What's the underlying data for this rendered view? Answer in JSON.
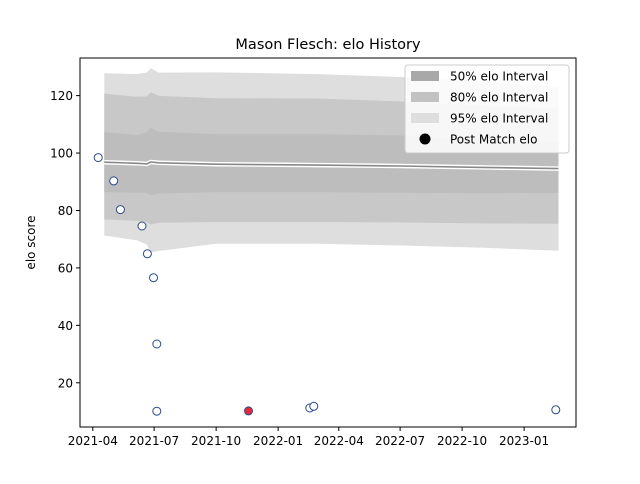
{
  "chart_data": {
    "type": "line",
    "title": "Mason Flesch: elo History",
    "xlabel": "",
    "ylabel": "elo score",
    "x_axis_kind": "date",
    "xlim": [
      "2021-03-13",
      "2023-03-19"
    ],
    "ylim": [
      4.6,
      133.1
    ],
    "x_ticks": [
      "2021-04",
      "2021-07",
      "2021-10",
      "2022-01",
      "2022-04",
      "2022-07",
      "2022-10",
      "2023-01"
    ],
    "y_ticks": [
      20,
      40,
      60,
      80,
      100,
      120
    ],
    "grid": false,
    "legend_position": "top-right",
    "legend": [
      {
        "label": "50% elo Interval",
        "kind": "band",
        "color": "#a8a8a8"
      },
      {
        "label": "80% elo Interval",
        "kind": "band",
        "color": "#c2c2c2"
      },
      {
        "label": "95% elo Interval",
        "kind": "band",
        "color": "#dedede"
      },
      {
        "label": "Post Match elo",
        "kind": "point",
        "color": "#000000"
      }
    ],
    "mean_line": {
      "x": [
        "2021-04-18",
        "2021-06-10",
        "2021-06-20",
        "2021-06-26",
        "2021-07-08",
        "2021-10-01",
        "2022-03-01",
        "2022-07-01",
        "2022-11-01",
        "2023-02-21"
      ],
      "y": [
        96.8,
        96.4,
        96.2,
        96.9,
        96.6,
        96.1,
        95.8,
        95.5,
        95.0,
        94.6
      ]
    },
    "bands": [
      {
        "name": "95% elo Interval",
        "color": "#dedede",
        "x": [
          "2021-04-18",
          "2021-06-05",
          "2021-06-20",
          "2021-06-26",
          "2021-07-08",
          "2021-10-01",
          "2022-03-01",
          "2022-07-01",
          "2022-11-01",
          "2023-02-21"
        ],
        "lower": [
          71.3,
          69.6,
          68.2,
          65.4,
          65.9,
          68.4,
          68.4,
          67.8,
          67.0,
          66.0
        ],
        "upper": [
          127.8,
          127.5,
          128.0,
          129.5,
          128.0,
          128.1,
          127.5,
          126.5,
          124.8,
          123.0
        ]
      },
      {
        "name": "80% elo Interval",
        "color": "#c8c8c8",
        "x": [
          "2021-04-18",
          "2021-06-05",
          "2021-06-20",
          "2021-06-26",
          "2021-07-08",
          "2021-10-01",
          "2022-03-01",
          "2022-07-01",
          "2022-11-01",
          "2023-02-21"
        ],
        "lower": [
          76.9,
          76.4,
          76.0,
          75.1,
          75.7,
          76.0,
          76.0,
          75.8,
          75.5,
          75.4
        ],
        "upper": [
          120.7,
          119.6,
          119.7,
          121.2,
          119.9,
          119.1,
          119.0,
          118.0,
          116.5,
          115.5
        ]
      },
      {
        "name": "50% elo Interval",
        "color": "#bdbdbd",
        "x": [
          "2021-04-18",
          "2021-06-05",
          "2021-06-20",
          "2021-06-26",
          "2021-07-08",
          "2021-10-01",
          "2022-03-01",
          "2022-07-01",
          "2022-11-01",
          "2023-02-21"
        ],
        "lower": [
          86.4,
          86.2,
          86.2,
          85.2,
          85.9,
          86.4,
          86.4,
          86.2,
          86.0,
          86.2
        ],
        "upper": [
          107.3,
          106.3,
          107.2,
          108.8,
          107.4,
          106.6,
          106.6,
          106.1,
          104.9,
          103.9
        ]
      }
    ],
    "points": [
      {
        "x": "2021-04-09",
        "y": 98.4,
        "color": "#ffffff"
      },
      {
        "x": "2021-05-02",
        "y": 90.3,
        "color": "#ffffff"
      },
      {
        "x": "2021-05-12",
        "y": 80.3,
        "color": "#ffffff"
      },
      {
        "x": "2021-06-13",
        "y": 74.6,
        "color": "#ffffff"
      },
      {
        "x": "2021-06-21",
        "y": 64.9,
        "color": "#ffffff"
      },
      {
        "x": "2021-06-30",
        "y": 56.6,
        "color": "#ffffff"
      },
      {
        "x": "2021-07-05",
        "y": 33.5,
        "color": "#ffffff"
      },
      {
        "x": "2021-07-05",
        "y": 10.1,
        "color": "#ffffff"
      },
      {
        "x": "2021-11-18",
        "y": 10.2,
        "color": "#e8293a"
      },
      {
        "x": "2022-02-17",
        "y": 11.2,
        "color": "#ffffff"
      },
      {
        "x": "2022-02-23",
        "y": 11.8,
        "color": "#ffffff"
      },
      {
        "x": "2023-02-17",
        "y": 10.6,
        "color": "#ffffff"
      }
    ]
  }
}
